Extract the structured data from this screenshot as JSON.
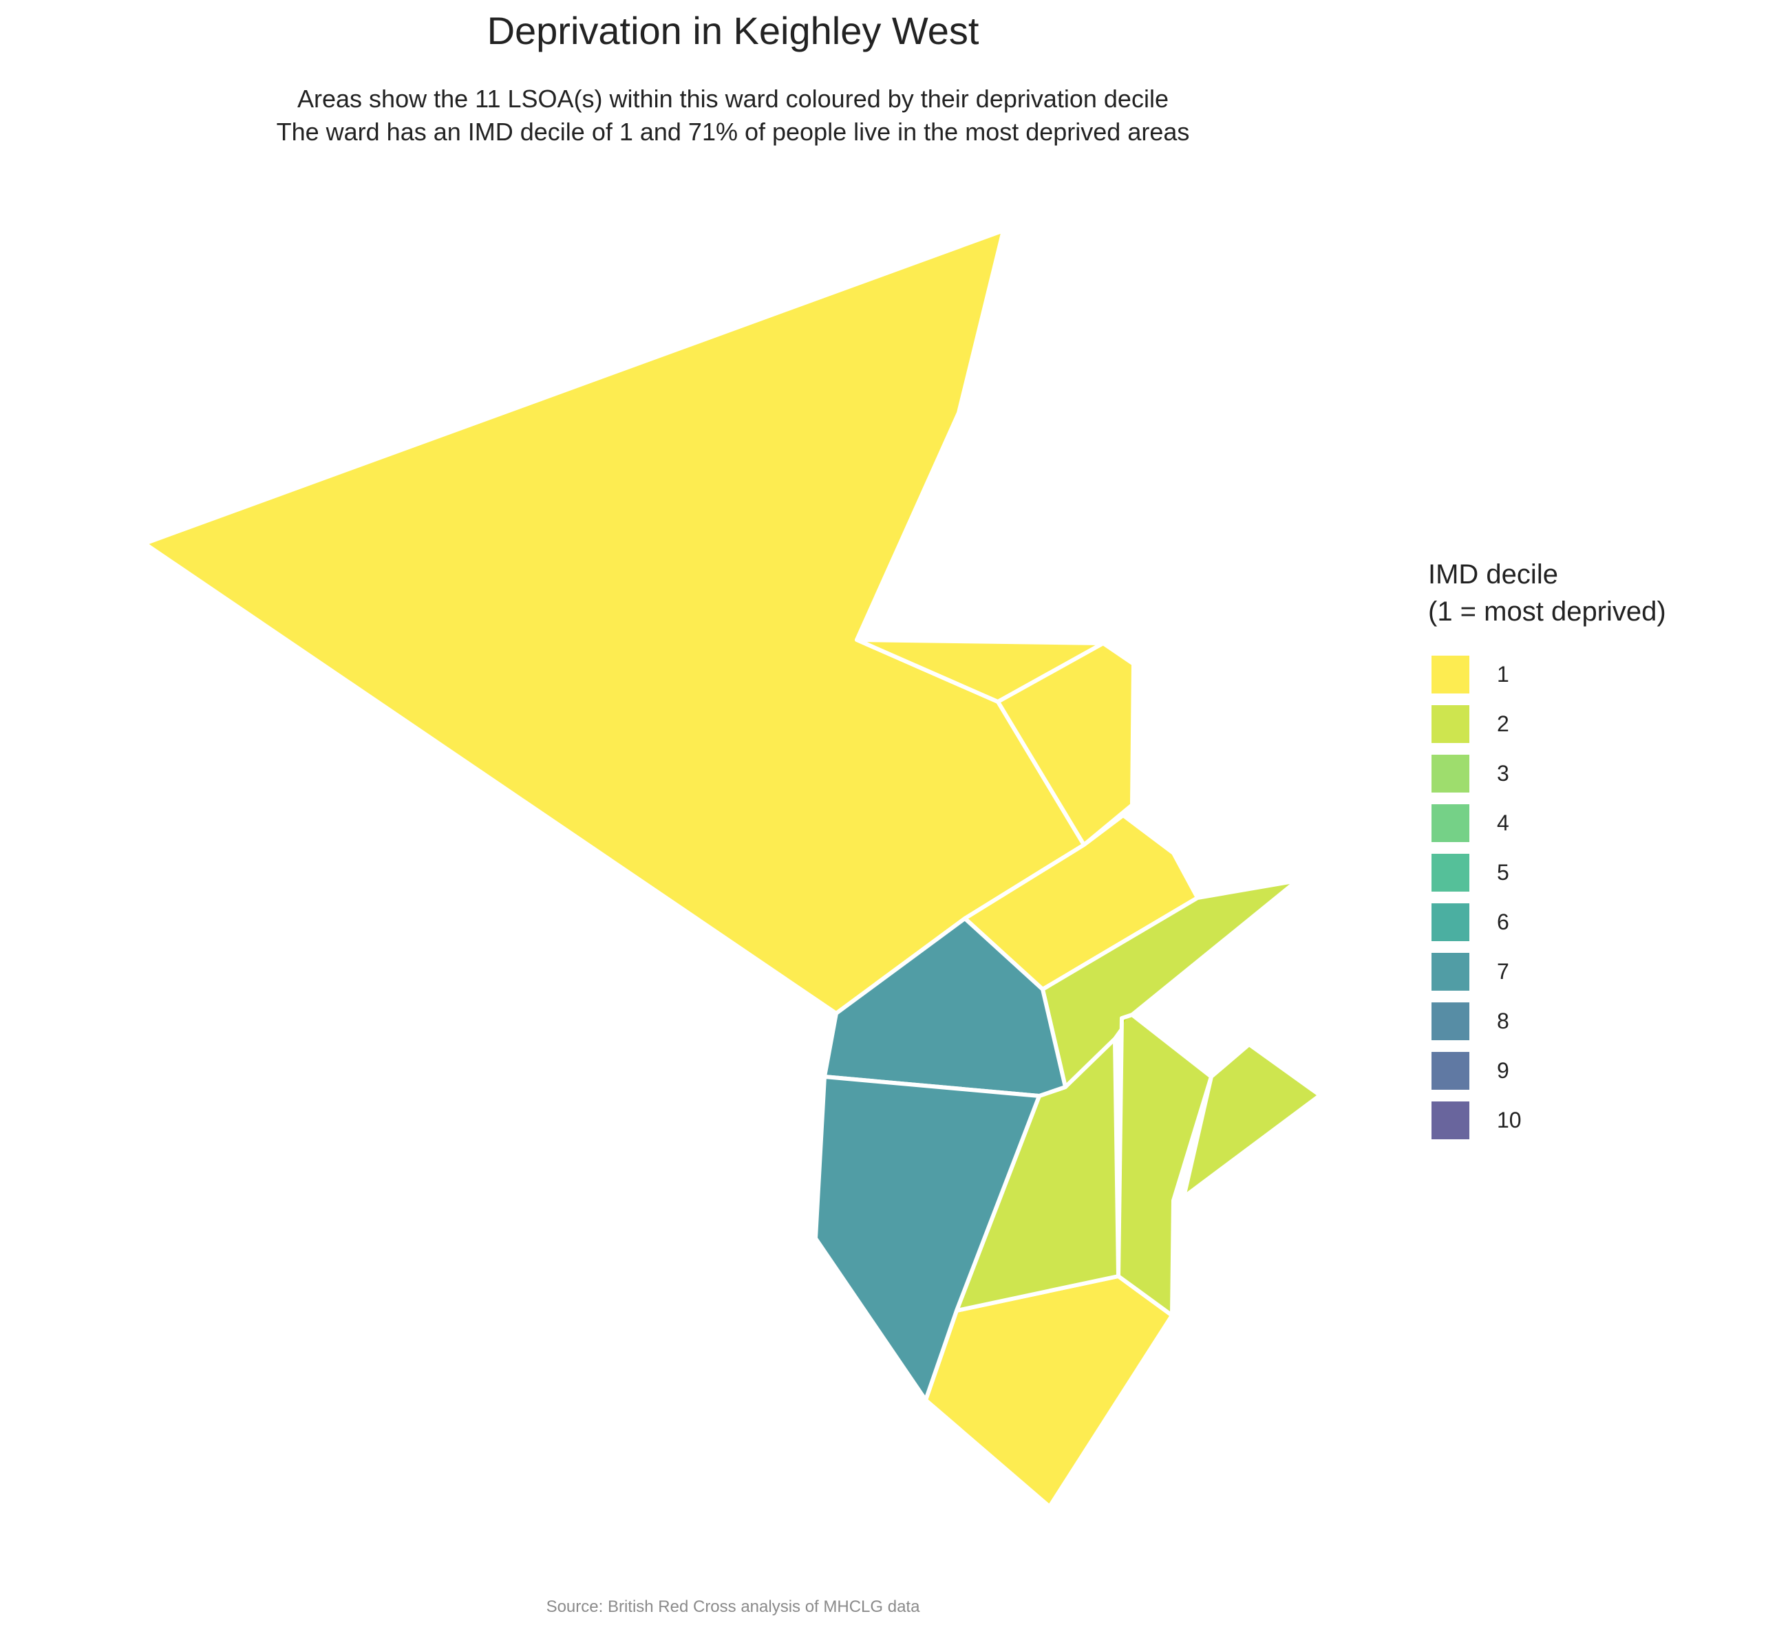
{
  "title": "Deprivation in Keighley West",
  "subtitle": {
    "line1": "Areas show the 11 LSOA(s) within this ward coloured by their deprivation decile",
    "line2": "The ward has an IMD decile of 1 and 71% of people live in the most deprived areas"
  },
  "legend": {
    "title": "IMD decile\n(1 = most deprived)",
    "items": [
      {
        "label": "1",
        "color": "#FDE725"
      },
      {
        "label": "2",
        "color": "#C2DF23"
      },
      {
        "label": "3",
        "color": "#86D549"
      },
      {
        "label": "4",
        "color": "#52C569"
      },
      {
        "label": "5",
        "color": "#2AB07F"
      },
      {
        "label": "6",
        "color": "#1E9B8A"
      },
      {
        "label": "7",
        "color": "#25858E"
      },
      {
        "label": "8",
        "color": "#2D708E"
      },
      {
        "label": "9",
        "color": "#38588C"
      },
      {
        "label": "10",
        "color": "#433E85"
      }
    ]
  },
  "areas": [
    {
      "id": "lsoa-1",
      "decile": 1
    },
    {
      "id": "lsoa-2",
      "decile": 1
    },
    {
      "id": "lsoa-3",
      "decile": 1
    },
    {
      "id": "lsoa-4",
      "decile": 1
    },
    {
      "id": "lsoa-5",
      "decile": 1
    },
    {
      "id": "lsoa-6",
      "decile": 2
    },
    {
      "id": "lsoa-7",
      "decile": 2
    },
    {
      "id": "lsoa-8",
      "decile": 2
    },
    {
      "id": "lsoa-9",
      "decile": 2
    },
    {
      "id": "lsoa-10",
      "decile": 7
    },
    {
      "id": "lsoa-11",
      "decile": 7
    }
  ],
  "caption": "Source: British Red Cross analysis of MHCLG data"
}
